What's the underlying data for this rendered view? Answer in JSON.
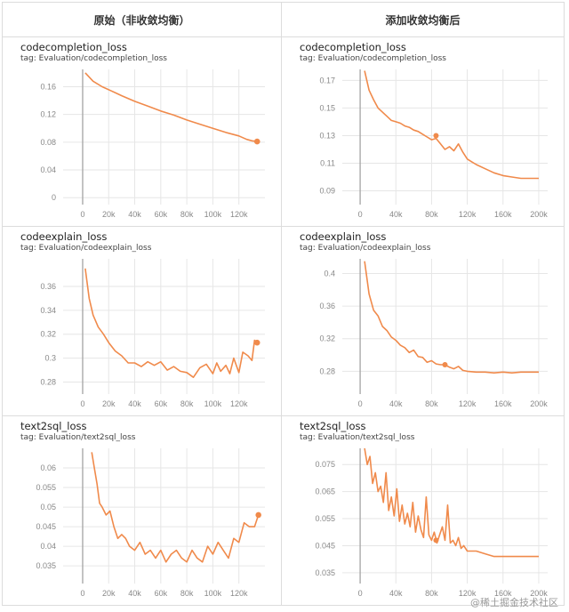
{
  "header": {
    "left": "原始（非收敛均衡）",
    "right": "添加收敛均衡后"
  },
  "colors": {
    "line": "#f08a4b",
    "grid": "#e6e6e6",
    "axis": "#aaaaaa"
  },
  "watermark": "@稀土掘金技术社区",
  "panels": [
    {
      "title": "codecompletion_loss",
      "tag": "tag: Evaluation/codecompletion_loss",
      "chart_data": {
        "type": "line",
        "xlim": [
          -15000,
          140000
        ],
        "ylim": [
          -0.01,
          0.185
        ],
        "xticks": [
          0,
          20000,
          40000,
          60000,
          80000,
          100000,
          120000
        ],
        "xtick_labels": [
          "0",
          "20k",
          "40k",
          "60k",
          "80k",
          "100k",
          "120k"
        ],
        "yticks": [
          0,
          0.04,
          0.08,
          0.12,
          0.16
        ],
        "ytick_labels": [
          "0",
          "0.04",
          "0.08",
          "0.12",
          "0.16"
        ],
        "series": [
          {
            "x": [
              2000,
              8000,
              15000,
              22000,
              30000,
              40000,
              50000,
              60000,
              70000,
              80000,
              90000,
              100000,
              110000,
              120000,
              126000,
              130000,
              134000
            ],
            "y": [
              0.18,
              0.168,
              0.16,
              0.154,
              0.147,
              0.139,
              0.132,
              0.125,
              0.119,
              0.112,
              0.106,
              0.1,
              0.094,
              0.089,
              0.084,
              0.082,
              0.081
            ]
          }
        ],
        "endpoint": true
      }
    },
    {
      "title": "codecompletion_loss",
      "tag": "tag: Evaluation/codecompletion_loss",
      "chart_data": {
        "type": "line",
        "xlim": [
          -20000,
          210000
        ],
        "ylim": [
          0.08,
          0.178
        ],
        "xticks": [
          0,
          40000,
          80000,
          120000,
          160000,
          200000
        ],
        "xtick_labels": [
          "0",
          "40k",
          "80k",
          "120k",
          "160k",
          "200k"
        ],
        "yticks": [
          0.09,
          0.11,
          0.13,
          0.15,
          0.17
        ],
        "ytick_labels": [
          "0.09",
          "0.11",
          "0.13",
          "0.15",
          "0.17"
        ],
        "series": [
          {
            "x": [
              5000,
              10000,
              15000,
              20000,
              25000,
              30000,
              35000,
              40000,
              45000,
              50000,
              55000,
              60000,
              65000,
              70000,
              75000,
              80000,
              85000,
              90000,
              95000,
              100000,
              105000,
              110000,
              115000,
              120000,
              125000,
              130000,
              140000,
              150000,
              160000,
              170000,
              180000,
              190000,
              200000
            ],
            "y": [
              0.177,
              0.163,
              0.156,
              0.15,
              0.147,
              0.144,
              0.141,
              0.14,
              0.139,
              0.137,
              0.136,
              0.134,
              0.133,
              0.131,
              0.129,
              0.127,
              0.128,
              0.124,
              0.12,
              0.122,
              0.119,
              0.124,
              0.118,
              0.113,
              0.111,
              0.109,
              0.106,
              0.103,
              0.101,
              0.1,
              0.099,
              0.099,
              0.099
            ]
          }
        ],
        "marker": [
          85000,
          0.13
        ],
        "endpoint": false
      }
    },
    {
      "title": "codeexplain_loss",
      "tag": "tag: Evaluation/codeexplain_loss",
      "chart_data": {
        "type": "line",
        "xlim": [
          -15000,
          140000
        ],
        "ylim": [
          0.27,
          0.383
        ],
        "xticks": [
          0,
          20000,
          40000,
          60000,
          80000,
          100000,
          120000
        ],
        "xtick_labels": [
          "0",
          "20k",
          "40k",
          "60k",
          "80k",
          "100k",
          "120k"
        ],
        "yticks": [
          0.28,
          0.3,
          0.32,
          0.34,
          0.36
        ],
        "ytick_labels": [
          "0.28",
          "0.3",
          "0.32",
          "0.34",
          "0.36"
        ],
        "series": [
          {
            "x": [
              2000,
              5000,
              8000,
              12000,
              16000,
              20000,
              25000,
              30000,
              35000,
              40000,
              45000,
              50000,
              55000,
              60000,
              65000,
              70000,
              75000,
              80000,
              85000,
              90000,
              95000,
              100000,
              103000,
              106000,
              110000,
              113000,
              116000,
              120000,
              123000,
              127000,
              130000,
              132000,
              134000
            ],
            "y": [
              0.375,
              0.35,
              0.336,
              0.326,
              0.32,
              0.313,
              0.306,
              0.302,
              0.296,
              0.296,
              0.293,
              0.297,
              0.294,
              0.297,
              0.29,
              0.293,
              0.289,
              0.288,
              0.284,
              0.292,
              0.295,
              0.287,
              0.296,
              0.289,
              0.294,
              0.287,
              0.3,
              0.288,
              0.305,
              0.302,
              0.298,
              0.315,
              0.313
            ]
          }
        ],
        "endpoint": true
      }
    },
    {
      "title": "codeexplain_loss",
      "tag": "tag: Evaluation/codeexplain_loss",
      "chart_data": {
        "type": "line",
        "xlim": [
          -20000,
          210000
        ],
        "ylim": [
          0.252,
          0.418
        ],
        "xticks": [
          0,
          40000,
          80000,
          120000,
          160000,
          200000
        ],
        "xtick_labels": [
          "0",
          "40k",
          "80k",
          "120k",
          "160k",
          "200k"
        ],
        "yticks": [
          0.28,
          0.32,
          0.36,
          0.4
        ],
        "ytick_labels": [
          "0.28",
          "0.32",
          "0.36",
          "0.4"
        ],
        "series": [
          {
            "x": [
              5000,
              10000,
              15000,
              20000,
              25000,
              30000,
              35000,
              40000,
              45000,
              50000,
              55000,
              60000,
              65000,
              70000,
              75000,
              80000,
              85000,
              90000,
              95000,
              100000,
              105000,
              110000,
              115000,
              120000,
              130000,
              140000,
              150000,
              160000,
              170000,
              180000,
              190000,
              200000
            ],
            "y": [
              0.415,
              0.375,
              0.355,
              0.348,
              0.335,
              0.33,
              0.322,
              0.318,
              0.312,
              0.309,
              0.303,
              0.306,
              0.298,
              0.297,
              0.291,
              0.293,
              0.289,
              0.288,
              0.288,
              0.285,
              0.283,
              0.286,
              0.281,
              0.28,
              0.279,
              0.279,
              0.278,
              0.279,
              0.278,
              0.279,
              0.279,
              0.279
            ]
          }
        ],
        "marker": [
          95000,
          0.288
        ],
        "endpoint": false
      }
    },
    {
      "title": "text2sql_loss",
      "tag": "tag: Evaluation/text2sql_loss",
      "chart_data": {
        "type": "line",
        "xlim": [
          -15000,
          140000
        ],
        "ylim": [
          0.0305,
          0.065
        ],
        "xticks": [
          0,
          20000,
          40000,
          60000,
          80000,
          100000,
          120000
        ],
        "xtick_labels": [
          "0",
          "20k",
          "40k",
          "60k",
          "80k",
          "100k",
          "120k"
        ],
        "yticks": [
          0.035,
          0.04,
          0.045,
          0.05,
          0.055,
          0.06
        ],
        "ytick_labels": [
          "0.035",
          "0.04",
          "0.045",
          "0.05",
          "0.055",
          "0.06"
        ],
        "series": [
          {
            "x": [
              7000,
              9000,
              11000,
              13000,
              15000,
              18000,
              21000,
              24000,
              27000,
              30000,
              33000,
              36000,
              40000,
              44000,
              48000,
              52000,
              56000,
              60000,
              64000,
              68000,
              72000,
              76000,
              80000,
              84000,
              88000,
              92000,
              96000,
              100000,
              104000,
              108000,
              112000,
              116000,
              120000,
              124000,
              128000,
              132000,
              135000
            ],
            "y": [
              0.064,
              0.06,
              0.056,
              0.051,
              0.05,
              0.048,
              0.049,
              0.045,
              0.042,
              0.043,
              0.042,
              0.04,
              0.039,
              0.041,
              0.038,
              0.039,
              0.037,
              0.039,
              0.036,
              0.038,
              0.039,
              0.037,
              0.036,
              0.039,
              0.037,
              0.036,
              0.04,
              0.038,
              0.041,
              0.039,
              0.037,
              0.042,
              0.041,
              0.046,
              0.045,
              0.045,
              0.048
            ]
          }
        ],
        "endpoint": true
      }
    },
    {
      "title": "text2sql_loss",
      "tag": "tag: Evaluation/text2sql_loss",
      "chart_data": {
        "type": "line",
        "xlim": [
          -20000,
          210000
        ],
        "ylim": [
          0.031,
          0.081
        ],
        "xticks": [
          0,
          40000,
          80000,
          120000,
          160000,
          200000
        ],
        "xtick_labels": [
          "0",
          "40k",
          "80k",
          "120k",
          "160k",
          "200k"
        ],
        "yticks": [
          0.035,
          0.045,
          0.055,
          0.065,
          0.075
        ],
        "ytick_labels": [
          "0.035",
          "0.045",
          "0.055",
          "0.065",
          "0.075"
        ],
        "series": [
          {
            "x": [
              5000,
              8000,
              11000,
              14000,
              17000,
              20000,
              23000,
              26000,
              29000,
              32000,
              35000,
              38000,
              41000,
              44000,
              47000,
              50000,
              53000,
              56000,
              59000,
              62000,
              65000,
              68000,
              71000,
              74000,
              77000,
              80000,
              83000,
              86000,
              89000,
              92000,
              95000,
              98000,
              101000,
              104000,
              107000,
              110000,
              113000,
              116000,
              120000,
              130000,
              140000,
              150000,
              160000,
              170000,
              180000,
              190000,
              200000
            ],
            "y": [
              0.081,
              0.075,
              0.078,
              0.068,
              0.072,
              0.065,
              0.067,
              0.061,
              0.072,
              0.058,
              0.063,
              0.056,
              0.066,
              0.054,
              0.06,
              0.053,
              0.057,
              0.052,
              0.061,
              0.05,
              0.056,
              0.051,
              0.048,
              0.063,
              0.049,
              0.047,
              0.05,
              0.046,
              0.049,
              0.052,
              0.047,
              0.06,
              0.046,
              0.047,
              0.045,
              0.048,
              0.044,
              0.045,
              0.043,
              0.043,
              0.042,
              0.041,
              0.041,
              0.041,
              0.041,
              0.041,
              0.041
            ]
          }
        ],
        "marker": [
          85000,
          0.047
        ],
        "endpoint": false
      }
    }
  ]
}
